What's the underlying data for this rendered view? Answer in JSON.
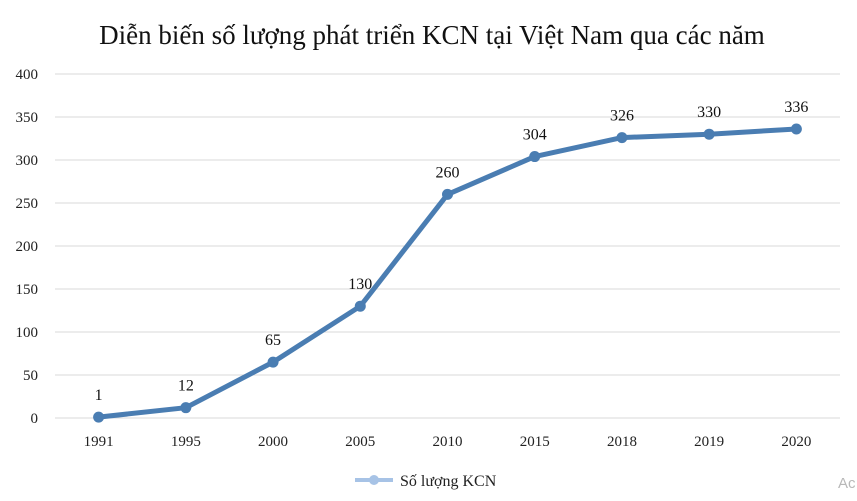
{
  "chart_data": {
    "type": "line",
    "title": "Diễn biến số lượng phát triển KCN tại Việt Nam qua các năm",
    "xlabel": "",
    "ylabel": "",
    "categories": [
      "1991",
      "1995",
      "2000",
      "2005",
      "2010",
      "2015",
      "2018",
      "2019",
      "2020"
    ],
    "series": [
      {
        "name": "Số lượng KCN",
        "values": [
          1,
          12,
          65,
          130,
          260,
          304,
          326,
          330,
          336
        ],
        "color": "#4a7db2"
      }
    ],
    "ylim": [
      0,
      400
    ],
    "yticks": [
      0,
      50,
      100,
      150,
      200,
      250,
      300,
      350,
      400
    ],
    "grid": true,
    "legend_position": "bottom",
    "legend_color": "#a7c3e6"
  },
  "watermark": "Ac"
}
